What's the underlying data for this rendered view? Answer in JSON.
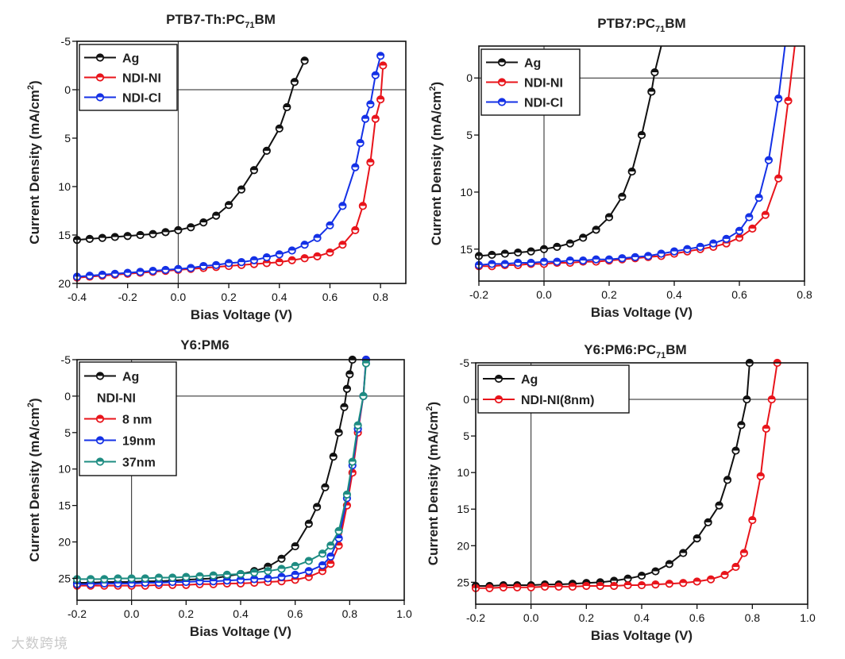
{
  "watermark": "大数跨境",
  "chart_data": [
    {
      "type": "line",
      "title": "PTB7-Th:PC",
      "title_sub": "71",
      "title_suffix": "BM",
      "xlabel": "Bias Voltage (V)",
      "ylabel": "Current Density  (mA/cm",
      "ylabel_sup": "2",
      "ylabel_end": ")",
      "xlim": [
        -0.4,
        0.9
      ],
      "ylim": [
        20,
        -5
      ],
      "xticks": [
        -0.4,
        -0.2,
        0.0,
        0.2,
        0.4,
        0.6,
        0.8
      ],
      "xtick_labels": [
        "-0.4",
        "-0.2",
        "0.0",
        "0.2",
        "0.4",
        "0.6",
        "0.8"
      ],
      "yticks": [
        -5,
        0,
        5,
        10,
        15,
        20
      ],
      "ytick_labels": [
        "-5",
        "0",
        "5",
        "10",
        "15",
        "20"
      ],
      "legend": "top-left",
      "series": [
        {
          "name": "Ag",
          "color": "#111111",
          "x": [
            -0.4,
            -0.35,
            -0.3,
            -0.25,
            -0.2,
            -0.15,
            -0.1,
            -0.05,
            0.0,
            0.05,
            0.1,
            0.15,
            0.2,
            0.25,
            0.3,
            0.35,
            0.4,
            0.43,
            0.46,
            0.5
          ],
          "y": [
            15.5,
            15.4,
            15.3,
            15.2,
            15.1,
            15.0,
            14.9,
            14.7,
            14.5,
            14.2,
            13.7,
            13.0,
            11.9,
            10.3,
            8.3,
            6.3,
            4.0,
            1.8,
            -0.8,
            -3.0
          ]
        },
        {
          "name": "NDI-NI",
          "color": "#e8141b",
          "x": [
            -0.4,
            -0.35,
            -0.3,
            -0.25,
            -0.2,
            -0.15,
            -0.1,
            -0.05,
            0.0,
            0.05,
            0.1,
            0.15,
            0.2,
            0.25,
            0.3,
            0.35,
            0.4,
            0.45,
            0.5,
            0.55,
            0.6,
            0.65,
            0.7,
            0.73,
            0.76,
            0.78,
            0.8,
            0.81
          ],
          "y": [
            19.4,
            19.3,
            19.2,
            19.1,
            19.0,
            18.9,
            18.8,
            18.7,
            18.6,
            18.5,
            18.4,
            18.3,
            18.2,
            18.1,
            18.0,
            17.9,
            17.8,
            17.6,
            17.4,
            17.2,
            16.8,
            16.0,
            14.5,
            12.0,
            7.5,
            3.0,
            1.0,
            -2.5
          ]
        },
        {
          "name": "NDI-Cl",
          "color": "#1431e6",
          "x": [
            -0.4,
            -0.35,
            -0.3,
            -0.25,
            -0.2,
            -0.15,
            -0.1,
            -0.05,
            0.0,
            0.05,
            0.1,
            0.15,
            0.2,
            0.25,
            0.3,
            0.35,
            0.4,
            0.45,
            0.5,
            0.55,
            0.6,
            0.65,
            0.7,
            0.72,
            0.74,
            0.76,
            0.78,
            0.8
          ],
          "y": [
            19.3,
            19.2,
            19.1,
            19.0,
            18.9,
            18.8,
            18.7,
            18.6,
            18.5,
            18.4,
            18.2,
            18.1,
            17.9,
            17.8,
            17.6,
            17.3,
            17.0,
            16.6,
            16.0,
            15.3,
            14.0,
            12.0,
            8.0,
            5.5,
            3.0,
            1.5,
            -1.5,
            -3.5
          ]
        }
      ]
    },
    {
      "type": "line",
      "title": "PTB7:PC",
      "title_sub": "71",
      "title_suffix": "BM",
      "xlabel": "Bias Voltage (V)",
      "ylabel": "Current Density  (mA/cm",
      "ylabel_sup": "2",
      "ylabel_end": ")",
      "xlim": [
        -0.2,
        0.8
      ],
      "ylim": [
        17.8,
        -2.8
      ],
      "xticks": [
        -0.2,
        0.0,
        0.2,
        0.4,
        0.6,
        0.8
      ],
      "xtick_labels": [
        "-0.2",
        "0.0",
        "0.2",
        "0.4",
        "0.6",
        "0.8"
      ],
      "yticks": [
        0,
        5,
        10,
        15
      ],
      "ytick_labels": [
        "0",
        "5",
        "10",
        "15"
      ],
      "legend": "top-left",
      "series": [
        {
          "name": "Ag",
          "color": "#111111",
          "x": [
            -0.2,
            -0.16,
            -0.12,
            -0.08,
            -0.04,
            0.0,
            0.04,
            0.08,
            0.12,
            0.16,
            0.2,
            0.24,
            0.27,
            0.3,
            0.33,
            0.34,
            0.36
          ],
          "y": [
            15.6,
            15.5,
            15.4,
            15.3,
            15.2,
            15.0,
            14.8,
            14.5,
            14.0,
            13.3,
            12.2,
            10.4,
            8.2,
            5.0,
            1.2,
            -0.5,
            -3.0
          ]
        },
        {
          "name": "NDI-NI",
          "color": "#e8141b",
          "x": [
            -0.2,
            -0.16,
            -0.12,
            -0.08,
            -0.04,
            0.0,
            0.04,
            0.08,
            0.12,
            0.16,
            0.2,
            0.24,
            0.28,
            0.32,
            0.36,
            0.4,
            0.44,
            0.48,
            0.52,
            0.56,
            0.6,
            0.64,
            0.68,
            0.72,
            0.75,
            0.77
          ],
          "y": [
            16.5,
            16.5,
            16.4,
            16.4,
            16.3,
            16.3,
            16.2,
            16.2,
            16.1,
            16.1,
            16.0,
            15.9,
            15.8,
            15.7,
            15.6,
            15.4,
            15.2,
            15.0,
            14.8,
            14.5,
            14.0,
            13.2,
            12.0,
            8.8,
            2.0,
            -3.0
          ]
        },
        {
          "name": "NDI-Cl",
          "color": "#1431e6",
          "x": [
            -0.2,
            -0.16,
            -0.12,
            -0.08,
            -0.04,
            0.0,
            0.04,
            0.08,
            0.12,
            0.16,
            0.2,
            0.24,
            0.28,
            0.32,
            0.36,
            0.4,
            0.44,
            0.48,
            0.52,
            0.56,
            0.6,
            0.63,
            0.66,
            0.69,
            0.72,
            0.74
          ],
          "y": [
            16.4,
            16.3,
            16.3,
            16.2,
            16.2,
            16.1,
            16.1,
            16.0,
            16.0,
            15.9,
            15.9,
            15.8,
            15.7,
            15.6,
            15.4,
            15.2,
            15.0,
            14.8,
            14.5,
            14.1,
            13.4,
            12.2,
            10.5,
            7.2,
            1.8,
            -3.0
          ]
        }
      ]
    },
    {
      "type": "line",
      "title": "Y6:PM6",
      "xlabel": "Bias Voltage (V)",
      "ylabel": "Current Density  (mA/cm",
      "ylabel_sup": "2",
      "ylabel_end": ")",
      "xlim": [
        -0.2,
        1.0
      ],
      "ylim": [
        28,
        -5
      ],
      "xticks": [
        -0.2,
        0.0,
        0.2,
        0.4,
        0.6,
        0.8,
        1.0
      ],
      "xtick_labels": [
        "-0.2",
        "0.0",
        "0.2",
        "0.4",
        "0.6",
        "0.8",
        "1.0"
      ],
      "yticks": [
        -5,
        0,
        5,
        10,
        15,
        20,
        25
      ],
      "ytick_labels": [
        "-5",
        "0",
        "5",
        "10",
        "15",
        "20",
        "25"
      ],
      "legend": "top-left",
      "legend_group_title": "NDI-NI",
      "series": [
        {
          "name": "Ag",
          "color": "#111111",
          "x": [
            -0.2,
            -0.15,
            -0.1,
            -0.05,
            0.0,
            0.05,
            0.1,
            0.15,
            0.2,
            0.25,
            0.3,
            0.35,
            0.4,
            0.45,
            0.5,
            0.55,
            0.6,
            0.65,
            0.68,
            0.71,
            0.74,
            0.76,
            0.78,
            0.79,
            0.8,
            0.81
          ],
          "y": [
            25.6,
            25.6,
            25.5,
            25.5,
            25.5,
            25.4,
            25.4,
            25.3,
            25.2,
            25.1,
            25.0,
            24.7,
            24.4,
            24.0,
            23.4,
            22.3,
            20.6,
            17.5,
            15.2,
            12.5,
            8.3,
            5.0,
            1.5,
            -1.0,
            -3.0,
            -5.0
          ]
        },
        {
          "name": "8 nm",
          "color": "#e8141b",
          "x": [
            -0.2,
            -0.15,
            -0.1,
            -0.05,
            0.0,
            0.05,
            0.1,
            0.15,
            0.2,
            0.25,
            0.3,
            0.35,
            0.4,
            0.45,
            0.5,
            0.55,
            0.6,
            0.65,
            0.7,
            0.73,
            0.76,
            0.79,
            0.81,
            0.83,
            0.85,
            0.86
          ],
          "y": [
            26.0,
            26.0,
            26.0,
            26.0,
            26.0,
            26.0,
            25.9,
            25.9,
            25.9,
            25.8,
            25.8,
            25.7,
            25.7,
            25.6,
            25.5,
            25.4,
            25.2,
            24.8,
            24.0,
            23.0,
            20.5,
            15.0,
            10.5,
            5.0,
            0.0,
            -5.0
          ]
        },
        {
          "name": "19nm",
          "color": "#1431e6",
          "x": [
            -0.2,
            -0.15,
            -0.1,
            -0.05,
            0.0,
            0.05,
            0.1,
            0.15,
            0.2,
            0.25,
            0.3,
            0.35,
            0.4,
            0.45,
            0.5,
            0.55,
            0.6,
            0.65,
            0.7,
            0.73,
            0.76,
            0.79,
            0.81,
            0.83,
            0.85,
            0.86
          ],
          "y": [
            25.8,
            25.8,
            25.7,
            25.7,
            25.7,
            25.6,
            25.6,
            25.5,
            25.5,
            25.4,
            25.4,
            25.3,
            25.2,
            25.1,
            25.0,
            24.8,
            24.5,
            24.0,
            23.2,
            22.0,
            19.5,
            14.0,
            9.5,
            4.5,
            0.0,
            -5.0
          ]
        },
        {
          "name": "37nm",
          "color": "#1e8c82",
          "x": [
            -0.2,
            -0.15,
            -0.1,
            -0.05,
            0.0,
            0.05,
            0.1,
            0.15,
            0.2,
            0.25,
            0.3,
            0.35,
            0.4,
            0.45,
            0.5,
            0.55,
            0.6,
            0.65,
            0.7,
            0.73,
            0.76,
            0.79,
            0.81,
            0.83,
            0.85,
            0.86
          ],
          "y": [
            25.1,
            25.1,
            25.1,
            25.0,
            25.0,
            25.0,
            24.9,
            24.9,
            24.8,
            24.7,
            24.6,
            24.5,
            24.4,
            24.2,
            24.0,
            23.7,
            23.3,
            22.6,
            21.6,
            20.5,
            18.5,
            13.5,
            9.0,
            4.0,
            0.0,
            -4.5
          ]
        }
      ]
    },
    {
      "type": "line",
      "title": "Y6:PM6:PC",
      "title_sub": "71",
      "title_suffix": "BM",
      "xlabel": "Bias Voltage (V)",
      "ylabel": "Current Density  (mA/cm",
      "ylabel_sup": "2",
      "ylabel_end": ")",
      "xlim": [
        -0.2,
        1.0
      ],
      "ylim": [
        28,
        -5
      ],
      "xticks": [
        -0.2,
        0.0,
        0.2,
        0.4,
        0.6,
        0.8,
        1.0
      ],
      "xtick_labels": [
        "-0.2",
        "0.0",
        "0.2",
        "0.4",
        "0.6",
        "0.8",
        "1.0"
      ],
      "yticks": [
        -5,
        0,
        5,
        10,
        15,
        20,
        25
      ],
      "ytick_labels": [
        "-5",
        "0",
        "5",
        "10",
        "15",
        "20",
        "25"
      ],
      "legend": "top-left",
      "series": [
        {
          "name": "Ag",
          "color": "#111111",
          "x": [
            -0.2,
            -0.15,
            -0.1,
            -0.05,
            0.0,
            0.05,
            0.1,
            0.15,
            0.2,
            0.25,
            0.3,
            0.35,
            0.4,
            0.45,
            0.5,
            0.55,
            0.6,
            0.64,
            0.68,
            0.71,
            0.74,
            0.76,
            0.78,
            0.79
          ],
          "y": [
            25.5,
            25.5,
            25.4,
            25.4,
            25.4,
            25.3,
            25.3,
            25.2,
            25.1,
            25.0,
            24.8,
            24.5,
            24.1,
            23.5,
            22.5,
            21.0,
            19.0,
            16.8,
            14.5,
            11.0,
            7.0,
            3.5,
            0.0,
            -5.0
          ]
        },
        {
          "name": "NDI-NI(8nm)",
          "color": "#e8141b",
          "x": [
            -0.2,
            -0.15,
            -0.1,
            -0.05,
            0.0,
            0.05,
            0.1,
            0.15,
            0.2,
            0.25,
            0.3,
            0.35,
            0.4,
            0.45,
            0.5,
            0.55,
            0.6,
            0.65,
            0.7,
            0.74,
            0.77,
            0.8,
            0.83,
            0.85,
            0.87,
            0.89
          ],
          "y": [
            25.8,
            25.8,
            25.7,
            25.7,
            25.7,
            25.6,
            25.6,
            25.6,
            25.5,
            25.5,
            25.5,
            25.4,
            25.4,
            25.3,
            25.2,
            25.1,
            24.9,
            24.6,
            24.0,
            22.9,
            21.0,
            16.5,
            10.5,
            4.0,
            0.0,
            -5.0
          ]
        }
      ]
    }
  ]
}
